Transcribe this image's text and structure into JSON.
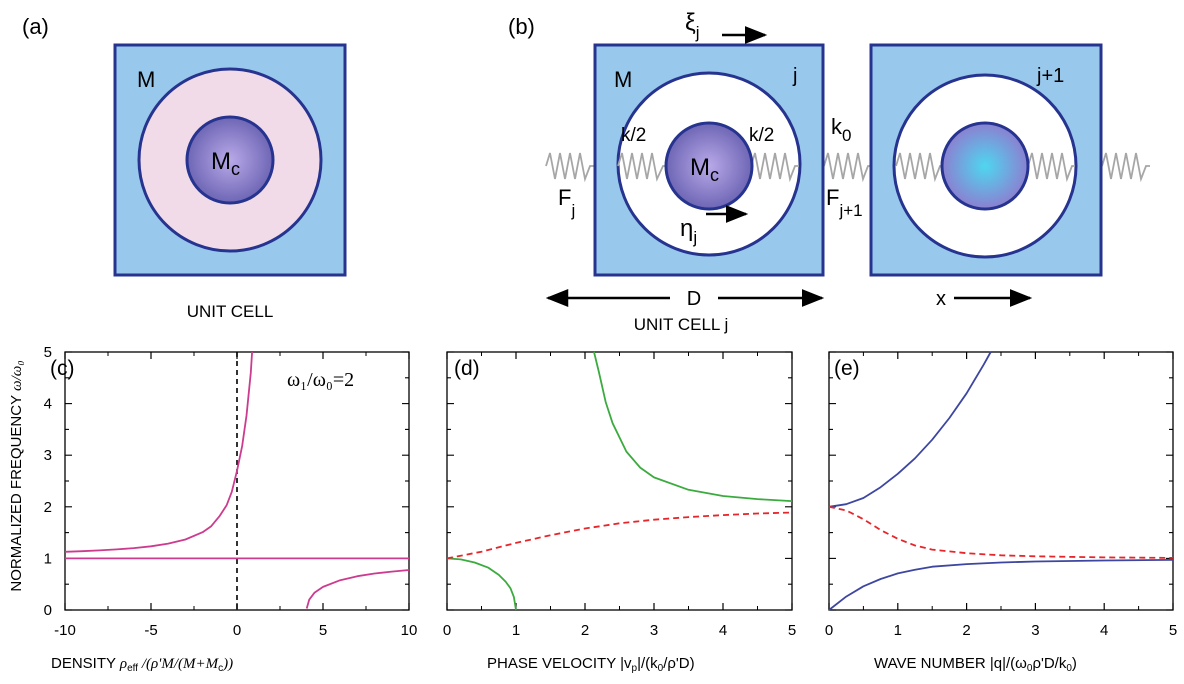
{
  "panel_a": {
    "tag": "(a)",
    "mass_outer": "M",
    "mass_core_base": "M",
    "mass_core_sub": "c",
    "caption": "UNIT CELL",
    "colors": {
      "frame_fill": "#98c8ec",
      "frame_stroke": "#26348f",
      "shell_fill": "#f1dbe9",
      "core_center": "#b7a5e6",
      "core_edge": "#6f67b6"
    }
  },
  "panel_b": {
    "tag": "(b)",
    "xi_base": "ξ",
    "xi_sub": "j",
    "cell_j_mass": "M",
    "cell_j_index": "j",
    "cell_j1_index": "j+1",
    "spring_left": "k/2",
    "spring_right": "k/2",
    "k0_base": "k",
    "k0_sub": "0",
    "core_base": "M",
    "core_sub": "c",
    "eta_base": "η",
    "eta_sub": "j",
    "force_left_base": "F",
    "force_left_sub": "j",
    "force_right_base": "F",
    "force_right_sub": "j+1",
    "width_label": "D",
    "x_label": "x",
    "caption": "UNIT CELL j",
    "colors": {
      "spring": "#a6a6a6",
      "core2_center": "#4fd4ee",
      "core2_edge": "#8a7fd0"
    }
  },
  "y_axis_label": "NORMALIZED FREQUENCY",
  "y_axis_unit": "ω/ω₀",
  "chart_data": [
    {
      "type": "line",
      "tag": "(c)",
      "annotation": "ω₁/ω₀=2",
      "xlabel_main": "DENSITY",
      "xlabel_sym": "ρ",
      "xlabel_sub": "eff",
      "xlabel_tail": " /(ρ'M/(M+M",
      "xlabel_tail_sub": "c",
      "xlabel_end": "))",
      "xlim": [
        -10,
        10
      ],
      "ylim": [
        0,
        5
      ],
      "xticks": [
        "-10",
        "-5",
        "0",
        "5",
        "10"
      ],
      "yticks": [
        "0",
        "1",
        "2",
        "3",
        "4",
        "5"
      ],
      "vline_x": 0,
      "series": [
        {
          "color": "#cc3b8e",
          "dash": false,
          "points": [
            [
              -10,
              1.127
            ],
            [
              -9,
              1.139
            ],
            [
              -8,
              1.155
            ],
            [
              -7,
              1.174
            ],
            [
              -6,
              1.2
            ],
            [
              -5,
              1.235
            ],
            [
              -4,
              1.286
            ],
            [
              -3,
              1.366
            ],
            [
              -2,
              1.508
            ],
            [
              -1.5,
              1.624
            ],
            [
              -1,
              1.826
            ],
            [
              -0.6,
              2.033
            ],
            [
              -0.3,
              2.29
            ],
            [
              0,
              2.698
            ],
            [
              0.3,
              3.182
            ],
            [
              0.55,
              3.767
            ],
            [
              0.8,
              4.6
            ],
            [
              0.88,
              5.0
            ]
          ]
        },
        {
          "color": "#cc3b8e",
          "dash": false,
          "points": [
            [
              -10,
              1.0
            ],
            [
              10,
              1.0
            ]
          ]
        },
        {
          "color": "#cc3b8e",
          "dash": false,
          "points": [
            [
              4.05,
              0.03
            ],
            [
              4.2,
              0.2
            ],
            [
              4.5,
              0.333
            ],
            [
              5,
              0.447
            ],
            [
              6,
              0.577
            ],
            [
              7,
              0.655
            ],
            [
              8,
              0.707
            ],
            [
              9,
              0.745
            ],
            [
              10,
              0.775
            ]
          ]
        }
      ]
    },
    {
      "type": "line",
      "tag": "(d)",
      "xlabel_main": "PHASE VELOCITY",
      "xlabel_tail": "|v",
      "xlabel_tail_sub": "p",
      "xlabel_mid": "|/(k",
      "xlabel_mid_sub": "0",
      "xlabel_end": "/ρ'D)",
      "xlim": [
        0,
        5
      ],
      "ylim": [
        0,
        5
      ],
      "xticks": [
        "0",
        "1",
        "2",
        "3",
        "4",
        "5"
      ],
      "yticks": [],
      "series": [
        {
          "color": "#3bab3f",
          "dash": false,
          "points": [
            [
              0,
              1.0
            ],
            [
              0.2,
              0.98
            ],
            [
              0.4,
              0.92
            ],
            [
              0.6,
              0.82
            ],
            [
              0.75,
              0.68
            ],
            [
              0.85,
              0.55
            ],
            [
              0.92,
              0.42
            ],
            [
              0.97,
              0.25
            ],
            [
              1.0,
              0.0
            ]
          ]
        },
        {
          "color": "#3bab3f",
          "dash": false,
          "points": [
            [
              2.13,
              5.0
            ],
            [
              2.2,
              4.62
            ],
            [
              2.3,
              4.03
            ],
            [
              2.4,
              3.62
            ],
            [
              2.6,
              3.07
            ],
            [
              2.8,
              2.76
            ],
            [
              3,
              2.57
            ],
            [
              3.5,
              2.33
            ],
            [
              4,
              2.21
            ],
            [
              4.5,
              2.15
            ],
            [
              5,
              2.11
            ]
          ]
        },
        {
          "color": "#e6262a",
          "dash": true,
          "points": [
            [
              0,
              1.0
            ],
            [
              0.5,
              1.13
            ],
            [
              1,
              1.3
            ],
            [
              1.5,
              1.45
            ],
            [
              2,
              1.58
            ],
            [
              2.5,
              1.68
            ],
            [
              3,
              1.75
            ],
            [
              3.5,
              1.8
            ],
            [
              4,
              1.84
            ],
            [
              4.5,
              1.87
            ],
            [
              5,
              1.89
            ]
          ]
        }
      ]
    },
    {
      "type": "line",
      "tag": "(e)",
      "xlabel_main": "WAVE NUMBER",
      "xlabel_tail": "|q|/(ω",
      "xlabel_tail_sub": "0",
      "xlabel_mid": "ρ'D/k",
      "xlabel_mid_sub": "0",
      "xlabel_end": ")",
      "xlim": [
        0,
        5
      ],
      "ylim": [
        0,
        5
      ],
      "xticks": [
        "0",
        "1",
        "2",
        "3",
        "4",
        "5"
      ],
      "yticks": [],
      "series": [
        {
          "color": "#3d46a0",
          "dash": false,
          "points": [
            [
              0,
              2.0
            ],
            [
              0.25,
              2.05
            ],
            [
              0.5,
              2.17
            ],
            [
              0.75,
              2.38
            ],
            [
              1,
              2.64
            ],
            [
              1.25,
              2.94
            ],
            [
              1.5,
              3.3
            ],
            [
              1.75,
              3.72
            ],
            [
              2,
              4.2
            ],
            [
              2.25,
              4.76
            ],
            [
              2.35,
              5.0
            ]
          ]
        },
        {
          "color": "#3d46a0",
          "dash": false,
          "points": [
            [
              0,
              0.0
            ],
            [
              0.25,
              0.26
            ],
            [
              0.5,
              0.46
            ],
            [
              0.75,
              0.6
            ],
            [
              1,
              0.71
            ],
            [
              1.25,
              0.78
            ],
            [
              1.5,
              0.84
            ],
            [
              2,
              0.89
            ],
            [
              2.5,
              0.92
            ],
            [
              3,
              0.94
            ],
            [
              4,
              0.96
            ],
            [
              5,
              0.97
            ]
          ]
        },
        {
          "color": "#e6262a",
          "dash": true,
          "points": [
            [
              0,
              2.0
            ],
            [
              0.25,
              1.93
            ],
            [
              0.5,
              1.76
            ],
            [
              0.75,
              1.55
            ],
            [
              1,
              1.38
            ],
            [
              1.25,
              1.25
            ],
            [
              1.5,
              1.17
            ],
            [
              2,
              1.1
            ],
            [
              2.5,
              1.06
            ],
            [
              3,
              1.04
            ],
            [
              4,
              1.02
            ],
            [
              5,
              1.01
            ]
          ]
        }
      ]
    }
  ]
}
